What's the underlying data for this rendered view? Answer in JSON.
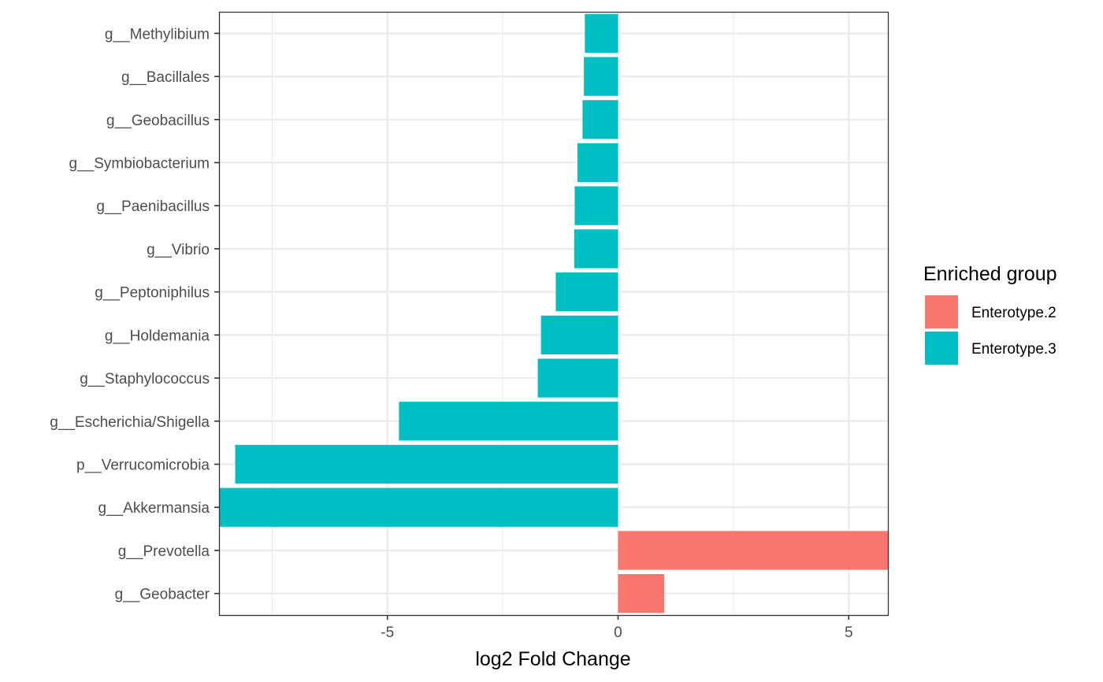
{
  "chart_data": {
    "type": "bar",
    "orientation": "horizontal",
    "xlabel": "log2 Fold Change",
    "ylabel": "",
    "xlim": [
      -8.65,
      5.85
    ],
    "x_ticks": [
      -5,
      0,
      5
    ],
    "x_tick_labels": [
      "-5",
      "0",
      "5"
    ],
    "grid": true,
    "legend_position": "right",
    "legend": {
      "title": "Enriched group",
      "entries": [
        {
          "label": "Enterotype.2",
          "color": "#F8766D"
        },
        {
          "label": "Enterotype.3",
          "color": "#00BFC4"
        }
      ]
    },
    "categories": [
      "g__Methylibium",
      "g__Bacillales",
      "g__Geobacillus",
      "g__Symbiobacterium",
      "g__Paenibacillus",
      "g__Vibrio",
      "g__Peptoniphilus",
      "g__Holdemania",
      "g__Staphylococcus",
      "g__Escherichia/Shigella",
      "p__Verrucomicrobia",
      "g__Akkermansia",
      "g__Prevotella",
      "g__Geobacter"
    ],
    "values": [
      -0.72,
      -0.74,
      -0.77,
      -0.88,
      -0.94,
      -0.95,
      -1.35,
      -1.67,
      -1.74,
      -4.75,
      -8.3,
      -8.65,
      5.85,
      1.0
    ],
    "groups": [
      "Enterotype.3",
      "Enterotype.3",
      "Enterotype.3",
      "Enterotype.3",
      "Enterotype.3",
      "Enterotype.3",
      "Enterotype.3",
      "Enterotype.3",
      "Enterotype.3",
      "Enterotype.3",
      "Enterotype.3",
      "Enterotype.3",
      "Enterotype.2",
      "Enterotype.2"
    ]
  }
}
